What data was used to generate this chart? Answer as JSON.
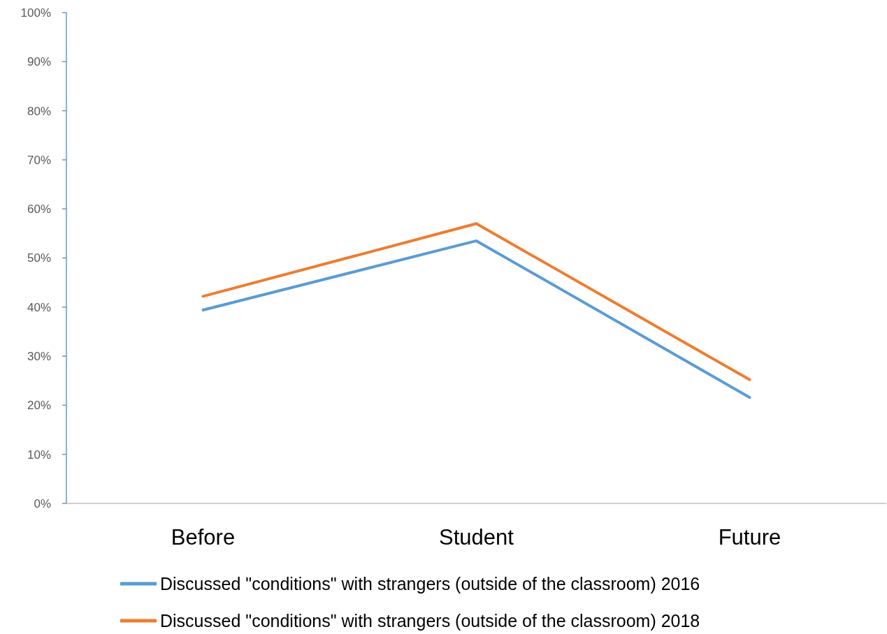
{
  "chart_data": {
    "type": "line",
    "categories": [
      "Before",
      "Student",
      "Future"
    ],
    "series": [
      {
        "name": "Discussed \"conditions\" with strangers (outside of the classroom) 2016",
        "color": "#5b9bd5",
        "values": [
          39.4,
          53.5,
          21.6
        ]
      },
      {
        "name": "Discussed \"conditions\" with strangers (outside of the classroom) 2018",
        "color": "#ed7d31",
        "values": [
          42.2,
          57.0,
          25.2
        ]
      }
    ],
    "ylim": [
      0,
      100
    ],
    "yticks": [
      {
        "value": 0,
        "label": "0%"
      },
      {
        "value": 10,
        "label": "10%"
      },
      {
        "value": 20,
        "label": "20%"
      },
      {
        "value": 30,
        "label": "30%"
      },
      {
        "value": 40,
        "label": "40%"
      },
      {
        "value": 50,
        "label": "50%"
      },
      {
        "value": 60,
        "label": "60%"
      },
      {
        "value": 70,
        "label": "70%"
      },
      {
        "value": 80,
        "label": "80%"
      },
      {
        "value": 90,
        "label": "90%"
      },
      {
        "value": 100,
        "label": "100%"
      }
    ],
    "grid": false,
    "legend": "bottom",
    "marker": "none",
    "line_style": "solid"
  }
}
